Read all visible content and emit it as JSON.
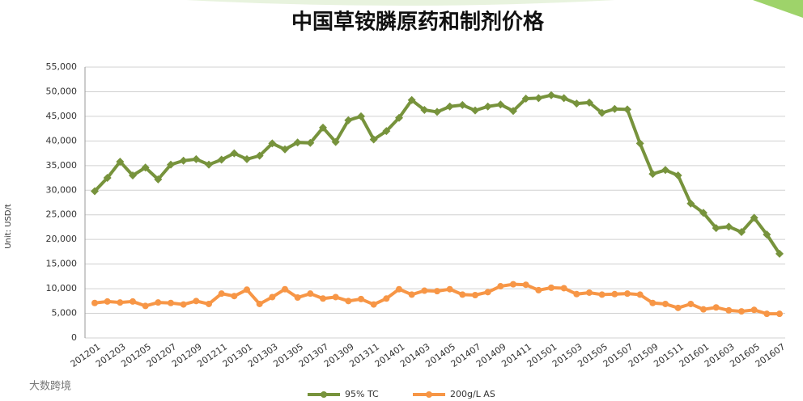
{
  "chart_data": {
    "type": "line",
    "title": "中国草铵膦原药和制剂价格",
    "y_label": "Unit: USD/t",
    "brand": "大数跨境",
    "categories": [
      "201201",
      null,
      "201203",
      null,
      "201205",
      null,
      "201207",
      null,
      "201209",
      null,
      "201211",
      null,
      "201301",
      null,
      "201303",
      null,
      "201305",
      null,
      "201307",
      null,
      "201309",
      null,
      "201311",
      null,
      "201401",
      null,
      "201403",
      null,
      "201405",
      null,
      "201407",
      null,
      "201409",
      null,
      "201411",
      null,
      "201501",
      null,
      "201503",
      null,
      "201505",
      null,
      "201507",
      null,
      "201509",
      null,
      "201511",
      null,
      "201601",
      null,
      "201603",
      null,
      "201605",
      null,
      "201607"
    ],
    "series": [
      {
        "name": "95% TC",
        "color": "#77933c",
        "marker": "diamond",
        "values": [
          29800,
          32500,
          35800,
          33000,
          34600,
          32200,
          35200,
          36000,
          36300,
          35200,
          36200,
          37500,
          36300,
          37000,
          39500,
          38300,
          39700,
          39600,
          42700,
          39800,
          44200,
          45000,
          40300,
          42000,
          44700,
          48300,
          46300,
          45900,
          47000,
          47300,
          46200,
          47000,
          47400,
          46100,
          48600,
          48700,
          49300,
          48700,
          47600,
          47800,
          45700,
          46500,
          46400,
          39500,
          33300,
          34100,
          33000,
          27300,
          25400,
          22300,
          22600,
          21500,
          24400,
          21000,
          17100
        ]
      },
      {
        "name": "200g/L AS",
        "color": "#f79646",
        "marker": "circle",
        "values": [
          7100,
          7400,
          7200,
          7400,
          6500,
          7200,
          7100,
          6800,
          7500,
          6900,
          9000,
          8500,
          9800,
          6900,
          8300,
          9900,
          8200,
          9000,
          8000,
          8300,
          7500,
          7900,
          6800,
          8000,
          9900,
          8800,
          9600,
          9500,
          9900,
          8800,
          8700,
          9300,
          10500,
          10900,
          10800,
          9700,
          10200,
          10100,
          8900,
          9200,
          8800,
          8900,
          9000,
          8800,
          7100,
          6900,
          6100,
          6900,
          5800,
          6200,
          5600,
          5400,
          5700,
          4900,
          4900
        ]
      }
    ],
    "ylim": [
      0,
      55000
    ],
    "yticks": [
      {
        "value": 0,
        "label": "0"
      },
      {
        "value": 5000,
        "label": "5,000"
      },
      {
        "value": 10000,
        "label": "10,000"
      },
      {
        "value": 15000,
        "label": "15,000"
      },
      {
        "value": 20000,
        "label": "20,000"
      },
      {
        "value": 25000,
        "label": "25,000"
      },
      {
        "value": 30000,
        "label": "30,000"
      },
      {
        "value": 35000,
        "label": "35,000"
      },
      {
        "value": 40000,
        "label": "40,000"
      },
      {
        "value": 45000,
        "label": "45,000"
      },
      {
        "value": 50000,
        "label": "50,000"
      },
      {
        "value": 55000,
        "label": "55,000"
      }
    ],
    "grid": true
  }
}
